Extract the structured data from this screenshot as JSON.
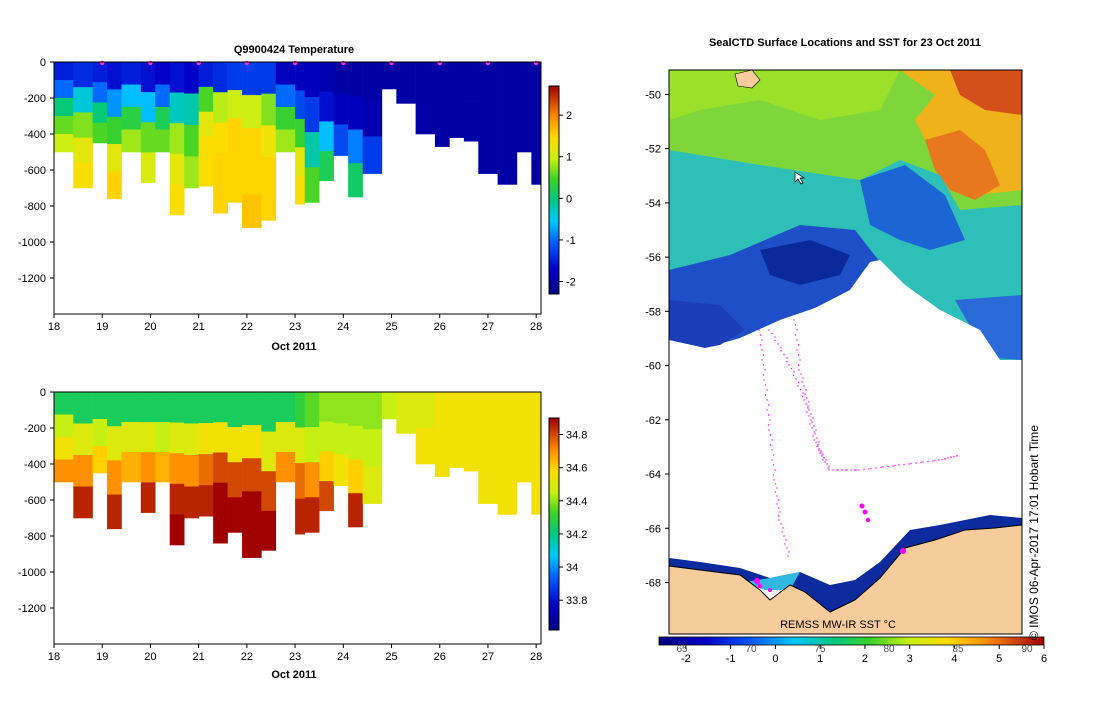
{
  "chart_data": [
    {
      "type": "heatmap",
      "title": "Q9900424  Temperature",
      "xlabel": "Oct 2011",
      "ylabel": "",
      "x_ticks": [
        "18",
        "19",
        "20",
        "21",
        "22",
        "23",
        "24",
        "25",
        "26",
        "27",
        "28"
      ],
      "y_ticks": [
        "0",
        "-200",
        "-400",
        "-600",
        "-800",
        "-1000",
        "-1200"
      ],
      "xlim": [
        18,
        28.1
      ],
      "ylim": [
        -1400,
        0
      ],
      "colorbar_ticks": [
        "2",
        "1",
        "0",
        "-1",
        "-2"
      ],
      "colorbar_range": [
        -2.3,
        2.7
      ],
      "profiles": [
        {
          "day": 18.0,
          "bottom": -500,
          "temps": [
            -1.5,
            -1.0,
            0.0,
            0.6,
            1.0
          ]
        },
        {
          "day": 18.4,
          "bottom": -700,
          "temps": [
            -1.4,
            -0.4,
            0.7,
            1.2,
            1.4
          ]
        },
        {
          "day": 18.8,
          "bottom": -450,
          "temps": [
            -1.5,
            -1.0,
            0.0,
            0.5
          ]
        },
        {
          "day": 19.1,
          "bottom": -760,
          "temps": [
            -1.6,
            -0.8,
            0.4,
            1.2,
            1.5
          ]
        },
        {
          "day": 19.4,
          "bottom": -500,
          "temps": [
            -1.5,
            -0.6,
            0.3,
            0.8
          ]
        },
        {
          "day": 19.8,
          "bottom": -670,
          "temps": [
            -1.6,
            -0.6,
            0.6,
            1.1
          ]
        },
        {
          "day": 20.1,
          "bottom": -500,
          "temps": [
            -1.7,
            -1.0,
            0.2,
            0.6
          ]
        },
        {
          "day": 20.4,
          "bottom": -850,
          "temps": [
            -1.6,
            -0.3,
            0.8,
            1.2,
            1.4
          ]
        },
        {
          "day": 20.7,
          "bottom": -700,
          "temps": [
            -1.7,
            -0.2,
            0.5,
            0.8
          ]
        },
        {
          "day": 21.0,
          "bottom": -690,
          "temps": [
            -1.5,
            0.5,
            1.2,
            1.4,
            1.4
          ]
        },
        {
          "day": 21.3,
          "bottom": -840,
          "temps": [
            -1.4,
            0.9,
            1.4,
            1.5,
            1.5
          ]
        },
        {
          "day": 21.6,
          "bottom": -780,
          "temps": [
            -1.3,
            1.0,
            1.5,
            1.5,
            1.5
          ]
        },
        {
          "day": 21.9,
          "bottom": -920,
          "temps": [
            -1.3,
            1.0,
            1.5,
            1.5,
            1.6
          ]
        },
        {
          "day": 22.3,
          "bottom": -880,
          "temps": [
            -1.3,
            0.7,
            1.3,
            1.5,
            1.5
          ]
        },
        {
          "day": 22.6,
          "bottom": -500,
          "temps": [
            -1.8,
            -1.0,
            0.4,
            0.8
          ]
        },
        {
          "day": 23.0,
          "bottom": -790,
          "temps": [
            -1.8,
            -1.2,
            0.4,
            1.2,
            1.4
          ]
        },
        {
          "day": 23.2,
          "bottom": -780,
          "temps": [
            -1.8,
            -1.3,
            -0.2,
            0.5
          ]
        },
        {
          "day": 23.5,
          "bottom": -660,
          "temps": [
            -1.9,
            -1.6,
            -0.6,
            0.2
          ]
        },
        {
          "day": 23.8,
          "bottom": -520,
          "temps": [
            -2.0,
            -1.8,
            -1.2
          ]
        },
        {
          "day": 24.1,
          "bottom": -750,
          "temps": [
            -2.0,
            -1.8,
            -0.9,
            0.1
          ]
        },
        {
          "day": 24.4,
          "bottom": -620,
          "temps": [
            -2.0,
            -1.9,
            -1.3
          ]
        },
        {
          "day": 24.8,
          "bottom": -150,
          "temps": [
            -2.0
          ]
        },
        {
          "day": 25.1,
          "bottom": -230,
          "temps": [
            -2.0
          ]
        },
        {
          "day": 25.5,
          "bottom": -400,
          "temps": [
            -2.0,
            -2.0
          ]
        },
        {
          "day": 25.9,
          "bottom": -470,
          "temps": [
            -2.0,
            -2.0
          ]
        },
        {
          "day": 26.2,
          "bottom": -420,
          "temps": [
            -2.0,
            -2.0
          ]
        },
        {
          "day": 26.5,
          "bottom": -440,
          "temps": [
            -2.0,
            -2.0
          ]
        },
        {
          "day": 26.8,
          "bottom": -620,
          "temps": [
            -2.0,
            -2.0
          ]
        },
        {
          "day": 27.2,
          "bottom": -680,
          "temps": [
            -2.0,
            -2.0
          ]
        },
        {
          "day": 27.6,
          "bottom": -500,
          "temps": [
            -2.0,
            -2.0
          ]
        },
        {
          "day": 27.9,
          "bottom": -680,
          "temps": [
            -2.0,
            -2.0
          ]
        }
      ]
    },
    {
      "type": "heatmap",
      "title": "",
      "xlabel": "Oct 2011",
      "ylabel": "",
      "x_ticks": [
        "18",
        "19",
        "20",
        "21",
        "22",
        "23",
        "24",
        "25",
        "26",
        "27",
        "28"
      ],
      "y_ticks": [
        "0",
        "-200",
        "-400",
        "-600",
        "-800",
        "-1000",
        "-1200"
      ],
      "xlim": [
        18,
        28.1
      ],
      "ylim": [
        -1400,
        0
      ],
      "colorbar_ticks": [
        "34.8",
        "34.6",
        "34.4",
        "34.2",
        "34",
        "33.8"
      ],
      "colorbar_range": [
        33.62,
        34.9
      ],
      "profiles": [
        {
          "day": 18.0,
          "bottom": -500,
          "sal": [
            34.25,
            34.45,
            34.55,
            34.7
          ]
        },
        {
          "day": 18.4,
          "bottom": -700,
          "sal": [
            34.25,
            34.5,
            34.7,
            34.85
          ]
        },
        {
          "day": 18.8,
          "bottom": -450,
          "sal": [
            34.25,
            34.45,
            34.6
          ]
        },
        {
          "day": 19.1,
          "bottom": -760,
          "sal": [
            34.25,
            34.5,
            34.7,
            34.85
          ]
        },
        {
          "day": 19.4,
          "bottom": -500,
          "sal": [
            34.25,
            34.5,
            34.65
          ]
        },
        {
          "day": 19.8,
          "bottom": -670,
          "sal": [
            34.25,
            34.5,
            34.7,
            34.85
          ]
        },
        {
          "day": 20.1,
          "bottom": -500,
          "sal": [
            34.25,
            34.45,
            34.65
          ]
        },
        {
          "day": 20.4,
          "bottom": -850,
          "sal": [
            34.25,
            34.5,
            34.7,
            34.85,
            34.9
          ]
        },
        {
          "day": 20.7,
          "bottom": -700,
          "sal": [
            34.25,
            34.5,
            34.7,
            34.85
          ]
        },
        {
          "day": 21.0,
          "bottom": -690,
          "sal": [
            34.25,
            34.55,
            34.75,
            34.85
          ]
        },
        {
          "day": 21.3,
          "bottom": -840,
          "sal": [
            34.25,
            34.55,
            34.8,
            34.9,
            34.9
          ]
        },
        {
          "day": 21.6,
          "bottom": -780,
          "sal": [
            34.25,
            34.55,
            34.8,
            34.9
          ]
        },
        {
          "day": 21.9,
          "bottom": -920,
          "sal": [
            34.25,
            34.55,
            34.8,
            34.9,
            34.9
          ]
        },
        {
          "day": 22.3,
          "bottom": -880,
          "sal": [
            34.25,
            34.5,
            34.8,
            34.9
          ]
        },
        {
          "day": 22.6,
          "bottom": -500,
          "sal": [
            34.25,
            34.5,
            34.7
          ]
        },
        {
          "day": 23.0,
          "bottom": -790,
          "sal": [
            34.3,
            34.5,
            34.75,
            34.85
          ]
        },
        {
          "day": 23.2,
          "bottom": -780,
          "sal": [
            34.35,
            34.45,
            34.7,
            34.85
          ]
        },
        {
          "day": 23.5,
          "bottom": -660,
          "sal": [
            34.4,
            34.45,
            34.6,
            34.8
          ]
        },
        {
          "day": 23.8,
          "bottom": -520,
          "sal": [
            34.4,
            34.45,
            34.55
          ]
        },
        {
          "day": 24.1,
          "bottom": -750,
          "sal": [
            34.4,
            34.45,
            34.6,
            34.85
          ]
        },
        {
          "day": 24.4,
          "bottom": -620,
          "sal": [
            34.4,
            34.45,
            34.5
          ]
        },
        {
          "day": 24.8,
          "bottom": -150,
          "sal": [
            34.45
          ]
        },
        {
          "day": 25.1,
          "bottom": -230,
          "sal": [
            34.5
          ]
        },
        {
          "day": 25.5,
          "bottom": -400,
          "sal": [
            34.5,
            34.55
          ]
        },
        {
          "day": 25.9,
          "bottom": -470,
          "sal": [
            34.55,
            34.55
          ]
        },
        {
          "day": 26.2,
          "bottom": -420,
          "sal": [
            34.55,
            34.55
          ]
        },
        {
          "day": 26.5,
          "bottom": -440,
          "sal": [
            34.55,
            34.55
          ]
        },
        {
          "day": 26.8,
          "bottom": -620,
          "sal": [
            34.55,
            34.55
          ]
        },
        {
          "day": 27.2,
          "bottom": -680,
          "sal": [
            34.55,
            34.55
          ]
        },
        {
          "day": 27.6,
          "bottom": -500,
          "sal": [
            34.55,
            34.55
          ]
        },
        {
          "day": 27.9,
          "bottom": -680,
          "sal": [
            34.55,
            34.55
          ]
        }
      ]
    },
    {
      "type": "heatmap",
      "title": "SealCTD Surface Locations and SST for 23 Oct 2011",
      "xlabel": "",
      "ylabel": "",
      "y_ticks": [
        "-50",
        "-52",
        "-54",
        "-56",
        "-58",
        "-60",
        "-62",
        "-64",
        "-66",
        "-68"
      ],
      "ylim": [
        -69.9,
        -49.1
      ],
      "colorbar_ticks": [
        "-2",
        "-1",
        "0",
        "1",
        "2",
        "3",
        "4",
        "5",
        "6"
      ],
      "colorbar_top_ticks": [
        "65",
        "70",
        "75",
        "80",
        "85",
        "90"
      ],
      "colorbar_range": [
        -2.6,
        6.0
      ],
      "source_label": "REMSS MW-IR SST °C",
      "credit": "© IMOS 06-Apr-2017 17:01 Hobart Time"
    }
  ]
}
